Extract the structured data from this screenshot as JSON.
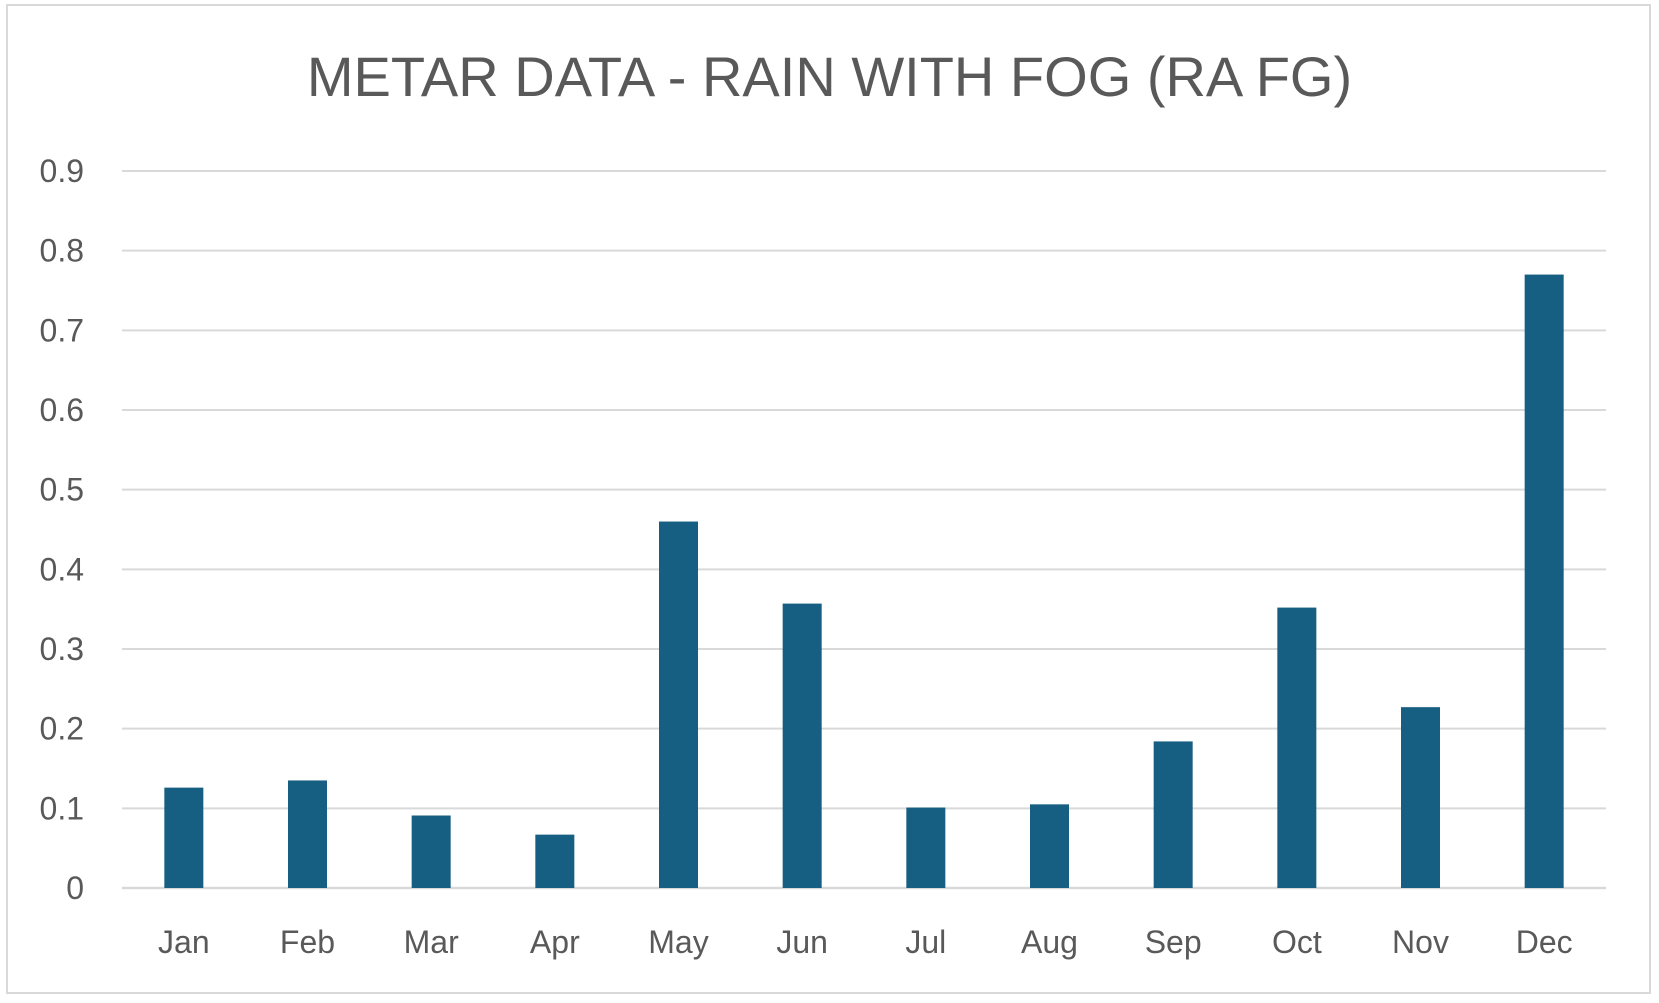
{
  "chart_data": {
    "type": "bar",
    "title": "METAR DATA - RAIN WITH FOG (RA FG)",
    "xlabel": "",
    "ylabel": "",
    "categories": [
      "Jan",
      "Feb",
      "Mar",
      "Apr",
      "May",
      "Jun",
      "Jul",
      "Aug",
      "Sep",
      "Oct",
      "Nov",
      "Dec"
    ],
    "values": [
      0.126,
      0.135,
      0.091,
      0.067,
      0.46,
      0.357,
      0.101,
      0.105,
      0.184,
      0.352,
      0.227,
      0.77
    ],
    "ylim": [
      0,
      0.9
    ],
    "yticks": [
      "0",
      "0.1",
      "0.2",
      "0.3",
      "0.4",
      "0.5",
      "0.6",
      "0.7",
      "0.8",
      "0.9"
    ],
    "grid": true,
    "legend": "none",
    "bar_color": "#175f82",
    "grid_color": "#d9d9d9",
    "axis_color": "#d9d9d9",
    "text_color": "#595959"
  }
}
